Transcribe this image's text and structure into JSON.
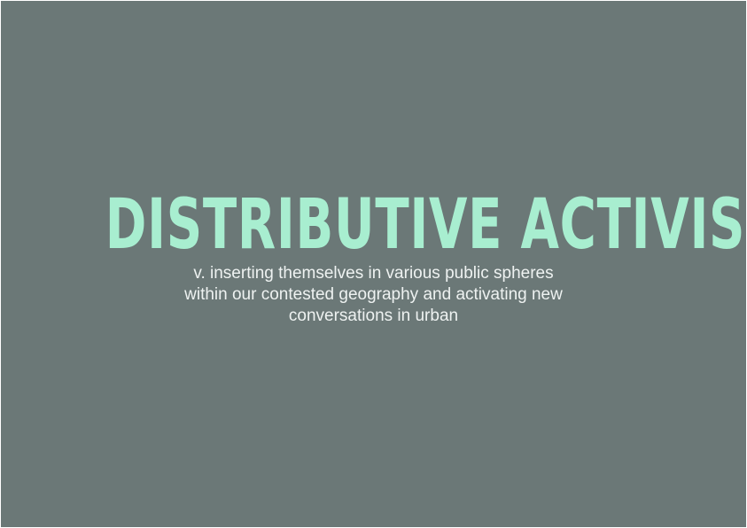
{
  "slide": {
    "title": "DISTRIBUTIVE ACTIVISM",
    "definition_lines": [
      "v. inserting themselves in various public spheres",
      "within our contested geography and activating new",
      "conversations in urban"
    ]
  },
  "colors": {
    "background": "#6b7877",
    "title": "#a8eed0",
    "text": "#eef2f1"
  }
}
